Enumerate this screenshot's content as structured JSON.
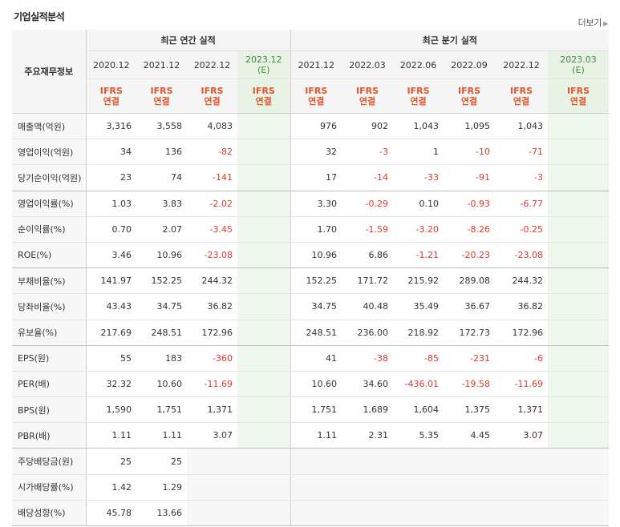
{
  "title": "기업실적분석",
  "more_label": "더보기",
  "header": {
    "label_col": "주요재무정보",
    "annual_group": "최근 연간 실적",
    "quarter_group": "최근 분기 실적",
    "ifrs_line1": "IFRS",
    "ifrs_line2": "연결",
    "annual_periods": [
      {
        "label": "2020.12",
        "est": ""
      },
      {
        "label": "2021.12",
        "est": ""
      },
      {
        "label": "2022.12",
        "est": ""
      },
      {
        "label": "2023.12",
        "est": "(E)"
      }
    ],
    "quarter_periods": [
      {
        "label": "2021.12",
        "est": ""
      },
      {
        "label": "2022.03",
        "est": ""
      },
      {
        "label": "2022.06",
        "est": ""
      },
      {
        "label": "2022.09",
        "est": ""
      },
      {
        "label": "2022.12",
        "est": ""
      },
      {
        "label": "2023.03",
        "est": "(E)"
      }
    ]
  },
  "rows": [
    {
      "label": "매출액(억원)",
      "annual": [
        "3,316",
        "3,558",
        "4,083",
        ""
      ],
      "quarter": [
        "976",
        "902",
        "1,043",
        "1,095",
        "1,043",
        ""
      ]
    },
    {
      "label": "영업이익(억원)",
      "annual": [
        "34",
        "136",
        "-82",
        ""
      ],
      "quarter": [
        "32",
        "-3",
        "1",
        "-10",
        "-71",
        ""
      ]
    },
    {
      "label": "당기순이익(억원)",
      "annual": [
        "23",
        "74",
        "-141",
        ""
      ],
      "quarter": [
        "17",
        "-14",
        "-33",
        "-91",
        "-3",
        ""
      ]
    },
    {
      "label": "영업이익률(%)",
      "annual": [
        "1.03",
        "3.83",
        "-2.02",
        ""
      ],
      "quarter": [
        "3.30",
        "-0.29",
        "0.10",
        "-0.93",
        "-6.77",
        ""
      ]
    },
    {
      "label": "순이익률(%)",
      "annual": [
        "0.70",
        "2.07",
        "-3.45",
        ""
      ],
      "quarter": [
        "1.70",
        "-1.59",
        "-3.20",
        "-8.26",
        "-0.25",
        ""
      ]
    },
    {
      "label": "ROE(%)",
      "annual": [
        "3.46",
        "10.96",
        "-23.08",
        ""
      ],
      "quarter": [
        "10.96",
        "6.86",
        "-1.21",
        "-20.23",
        "-23.08",
        ""
      ]
    },
    {
      "label": "부채비율(%)",
      "annual": [
        "141.97",
        "152.25",
        "244.32",
        ""
      ],
      "quarter": [
        "152.25",
        "171.72",
        "215.92",
        "289.08",
        "244.32",
        ""
      ]
    },
    {
      "label": "당좌비율(%)",
      "annual": [
        "43.43",
        "34.75",
        "36.82",
        ""
      ],
      "quarter": [
        "34.75",
        "40.48",
        "35.49",
        "36.67",
        "36.82",
        ""
      ]
    },
    {
      "label": "유보율(%)",
      "annual": [
        "217.69",
        "248.51",
        "172.96",
        ""
      ],
      "quarter": [
        "248.51",
        "236.00",
        "218.92",
        "172.73",
        "172.96",
        ""
      ]
    },
    {
      "label": "EPS(원)",
      "annual": [
        "55",
        "183",
        "-360",
        ""
      ],
      "quarter": [
        "41",
        "-38",
        "-85",
        "-231",
        "-6",
        ""
      ]
    },
    {
      "label": "PER(배)",
      "annual": [
        "32.32",
        "10.60",
        "-11.69",
        ""
      ],
      "quarter": [
        "10.60",
        "34.60",
        "-436.01",
        "-19.58",
        "-11.69",
        ""
      ]
    },
    {
      "label": "BPS(원)",
      "annual": [
        "1,590",
        "1,751",
        "1,371",
        ""
      ],
      "quarter": [
        "1,751",
        "1,689",
        "1,604",
        "1,375",
        "1,371",
        ""
      ]
    },
    {
      "label": "PBR(배)",
      "annual": [
        "1.11",
        "1.11",
        "3.07",
        ""
      ],
      "quarter": [
        "1.11",
        "2.31",
        "5.35",
        "4.45",
        "3.07",
        ""
      ]
    },
    {
      "label": "주당배당금(원)",
      "annual": [
        "25",
        "25",
        "",
        ""
      ],
      "quarter": [
        "",
        "",
        "",
        "",
        "",
        ""
      ]
    },
    {
      "label": "시가배당률(%)",
      "annual": [
        "1.42",
        "1.29",
        "",
        ""
      ],
      "quarter": [
        "",
        "",
        "",
        "",
        "",
        ""
      ]
    },
    {
      "label": "배당성향(%)",
      "annual": [
        "45.78",
        "13.66",
        "",
        ""
      ],
      "quarter": [
        "",
        "",
        "",
        "",
        "",
        ""
      ]
    }
  ]
}
